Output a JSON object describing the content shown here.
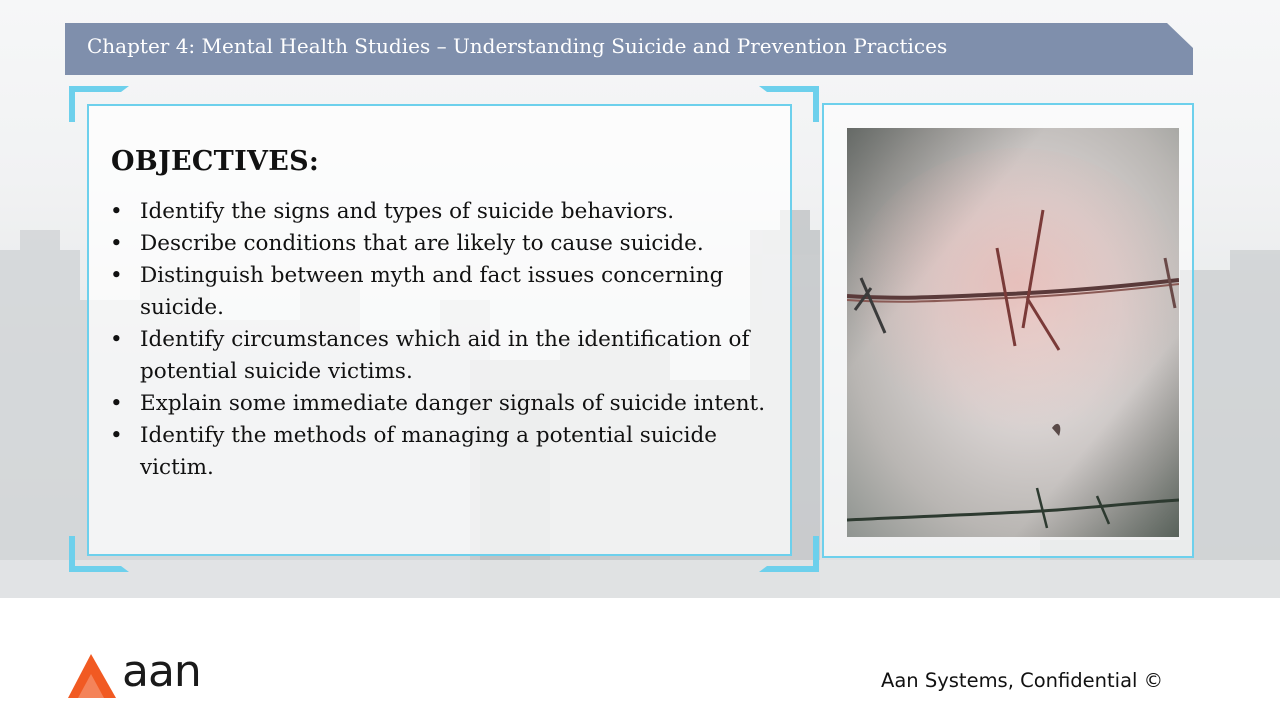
{
  "slide": {
    "title": "Chapter 4: Mental Health Studies – Understanding Suicide and Prevention Practices"
  },
  "objectives": {
    "heading": "OBJECTIVES:",
    "bullet_glyph": "•",
    "items": [
      "Identify the signs and types of suicide behaviors.",
      "Describe conditions that are likely to cause suicide.",
      "Distinguish between myth and fact issues concerning suicide.",
      "Identify circumstances which aid in the identification of potential suicide victims.",
      "Explain some immediate danger signals of suicide intent.",
      "Identify the methods of managing a potential suicide victim."
    ]
  },
  "image": {
    "subject": "barbed wire photo"
  },
  "footer": {
    "logo_text": "aan",
    "confidential": "Aan Systems, Confidential ©"
  },
  "colors": {
    "title_bar": "#7f8fac",
    "frame_accent": "#6dd0ec",
    "logo_orange": "#f15a22"
  }
}
